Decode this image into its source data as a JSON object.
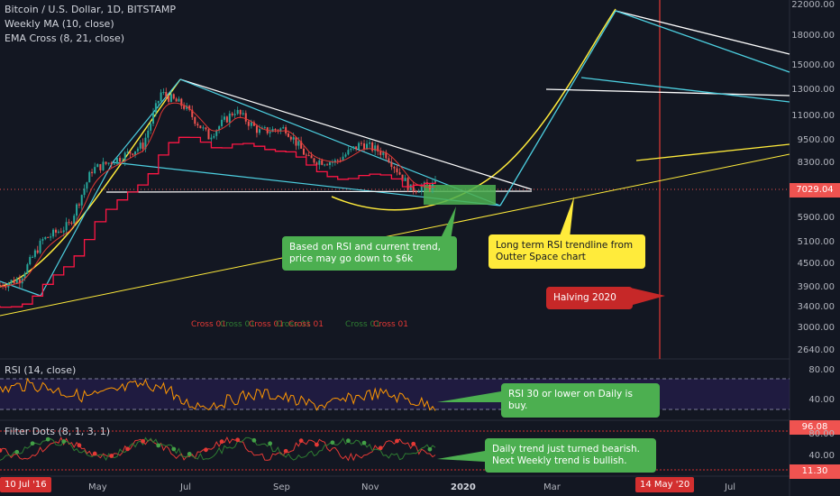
{
  "header": {
    "symbol": "Bitcoin / U.S. Dollar, 1D, BITSTAMP",
    "indicator_1": "Weekly MA (10, close)",
    "indicator_2": "EMA Cross (8, 21, close)"
  },
  "panes": {
    "rsi_label": "RSI (14, close)",
    "filter_label": "Filter Dots (8, 1, 3, 1)"
  },
  "annotations": {
    "rsi_support": "Based on RSI and current trend,\nprice may go down to $6k",
    "long_term": "Long term RSI trendline from\nOutter Space chart",
    "halving": "Halving 2020",
    "rsi_buy": "RSI 30 or lower on Daily is buy.",
    "daily_trend": "Daily trend just turned bearish.\nNext Weekly trend is bullish."
  },
  "cross_labels": [
    "Cross 01",
    "Cross 01",
    "Cross 01",
    "Cross 01",
    "Cross 01",
    "Cross 01",
    "Cross 01"
  ],
  "chart_data": {
    "type": "line",
    "title": "Bitcoin / U.S. Dollar, 1D, BITSTAMP",
    "y_scale": "log",
    "price_ticks": [
      "22000.00",
      "18000.00",
      "15000.00",
      "13000.00",
      "11000.00",
      "9500.00",
      "8300.00",
      "7029.04",
      "5900.00",
      "5100.00",
      "4500.00",
      "3900.00",
      "3400.00",
      "3000.00",
      "2640.00"
    ],
    "current_price": "7029.04",
    "x_labels": [
      "10 Jul '16",
      "May",
      "Jul",
      "Sep",
      "Nov",
      "2020",
      "Mar",
      "14 May '20",
      "Jul"
    ],
    "rsi_ticks": [
      "80.00",
      "40.00"
    ],
    "filter_ticks": [
      "96.08",
      "80.00",
      "40.00",
      "11.30"
    ],
    "series": [
      {
        "name": "Bitcoin / U.S. Dollar",
        "x": [
          "2019-03-20",
          "2019-04-01",
          "2019-04-15",
          "2019-05-01",
          "2019-05-15",
          "2019-06-01",
          "2019-06-15",
          "2019-06-26",
          "2019-07-10",
          "2019-07-25",
          "2019-08-10",
          "2019-08-25",
          "2019-09-10",
          "2019-09-24",
          "2019-10-10",
          "2019-10-26",
          "2019-11-10",
          "2019-11-25",
          "2019-12-10"
        ],
        "y": [
          3950,
          4100,
          5200,
          5700,
          8000,
          8600,
          9300,
          12800,
          11800,
          9800,
          11500,
          10100,
          10300,
          8500,
          8400,
          9400,
          8800,
          7100,
          7300
        ]
      }
    ],
    "colors": {
      "up": "#26a69a",
      "down": "#ef5350",
      "ma": "#ff1744",
      "ema": "#2e7d32",
      "rsi": "#ff9800",
      "accent_cyan": "#40c4ff",
      "accent_yellow": "#ffeb3b"
    }
  }
}
